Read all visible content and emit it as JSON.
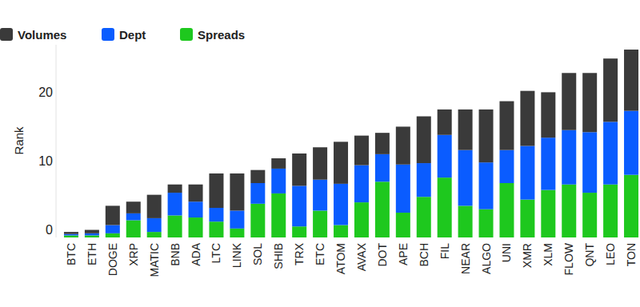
{
  "chart_data": {
    "type": "bar",
    "stacked": true,
    "legend": "top-left",
    "grid": false,
    "y_label": "Rank",
    "categories": [
      "BTC",
      "ETH",
      "DOGE",
      "XRP",
      "MATIC",
      "BNB",
      "ADA",
      "LTC",
      "LINK",
      "SOL",
      "SHIB",
      "TRX",
      "ETC",
      "ATOM",
      "AVAX",
      "DOT",
      "APE",
      "BCH",
      "FIL",
      "NEAR",
      "ALGO",
      "UNI",
      "XMR",
      "XLM",
      "FLOW",
      "QNT",
      "LEO",
      "TON"
    ],
    "ylim": [
      0,
      28
    ],
    "yticks": [
      0,
      10,
      20
    ],
    "series": [
      {
        "name": "Volumes",
        "color": "#3a3a3a",
        "values": [
          0.3,
          0.5,
          2.8,
          1.7,
          3.4,
          1.2,
          2.5,
          5.0,
          5.4,
          1.9,
          1.5,
          4.7,
          4.7,
          6.1,
          4.3,
          3.1,
          5.5,
          6.8,
          3.7,
          5.9,
          7.7,
          7.1,
          8.0,
          6.6,
          8.3,
          8.6,
          9.2,
          8.9
        ]
      },
      {
        "name": "Dept",
        "color": "#0a5cff",
        "values": [
          0.2,
          0.3,
          1.2,
          1.0,
          2.0,
          3.3,
          2.3,
          2.0,
          2.6,
          3.0,
          3.6,
          5.9,
          4.5,
          6.0,
          5.4,
          4.0,
          7.0,
          4.9,
          6.2,
          8.1,
          6.8,
          4.8,
          7.8,
          7.6,
          7.9,
          8.8,
          9.1,
          9.3
        ]
      },
      {
        "name": "Spreads",
        "color": "#1ec81e",
        "values": [
          0.3,
          0.3,
          0.6,
          2.5,
          0.8,
          3.2,
          2.9,
          2.3,
          1.3,
          4.9,
          6.4,
          1.6,
          3.9,
          1.8,
          5.1,
          8.1,
          3.6,
          5.9,
          8.7,
          4.6,
          4.1,
          7.9,
          5.5,
          6.9,
          7.7,
          6.5,
          7.7,
          9.1
        ]
      }
    ]
  }
}
